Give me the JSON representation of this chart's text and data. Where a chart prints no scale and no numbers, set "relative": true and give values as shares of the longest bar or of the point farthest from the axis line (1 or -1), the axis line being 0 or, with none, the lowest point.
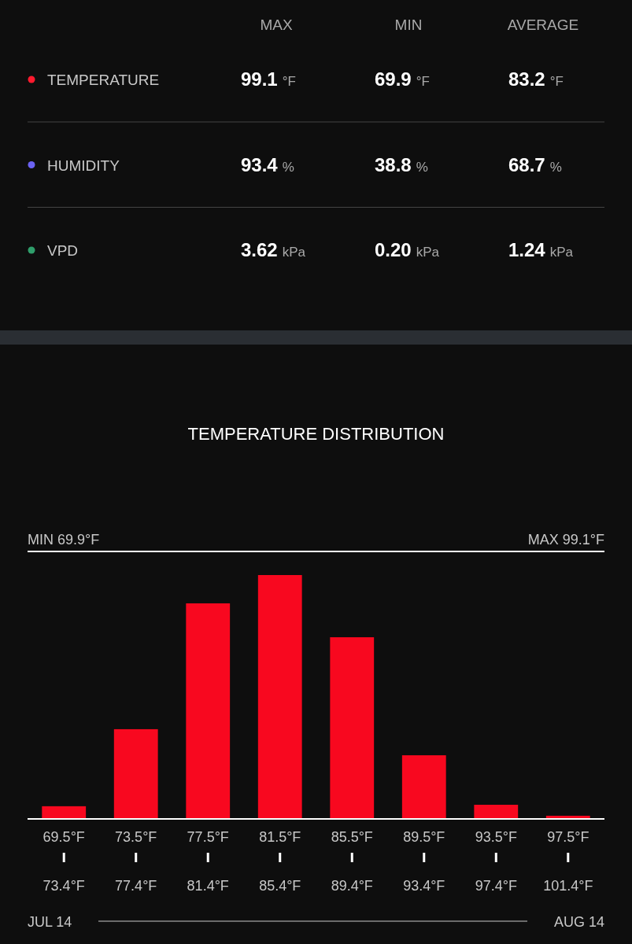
{
  "chart_data": [
    {
      "type": "other",
      "categories": [
        "MAX",
        "MIN",
        "AVERAGE"
      ],
      "series": [
        {
          "name": "TEMPERATURE",
          "color": "#ff1a2e",
          "values": [
            99.1,
            69.9,
            83.2
          ],
          "value_labels": [
            "99.1 °F",
            "69.9 °F",
            "83.2 °F"
          ]
        },
        {
          "name": "HUMIDITY",
          "color": "#6b62f2",
          "values": [
            93.4,
            38.8,
            68.7
          ],
          "value_labels": [
            "93.4 %",
            "38.8 %",
            "68.7 %"
          ]
        },
        {
          "name": "VPD",
          "color": "#2f9e6b",
          "values": [
            3.62,
            0.2,
            1.24
          ],
          "value_labels": [
            "3.62 kPa",
            "0.20 kPa",
            "1.24 kPa"
          ]
        }
      ]
    },
    {
      "type": "bar",
      "title": "TEMPERATURE DISTRIBUTION",
      "relative": true,
      "color": "#f8081f",
      "categories": [
        "69.5°F\n73.4°F",
        "73.5°F\n77.4°F",
        "77.5°F\n81.4°F",
        "81.5°F\n85.4°F",
        "85.5°F\n89.4°F",
        "89.5°F\n93.4°F",
        "93.5°F\n97.4°F",
        "97.5°F\n101.4°F"
      ],
      "values": [
        0.052,
        0.368,
        0.884,
        1,
        0.745,
        0.261,
        0.058,
        0.013
      ],
      "annotations": [
        "MIN 69.9°F",
        "MAX 99.1°F",
        "JUL 14",
        "AUG 14"
      ]
    }
  ]
}
